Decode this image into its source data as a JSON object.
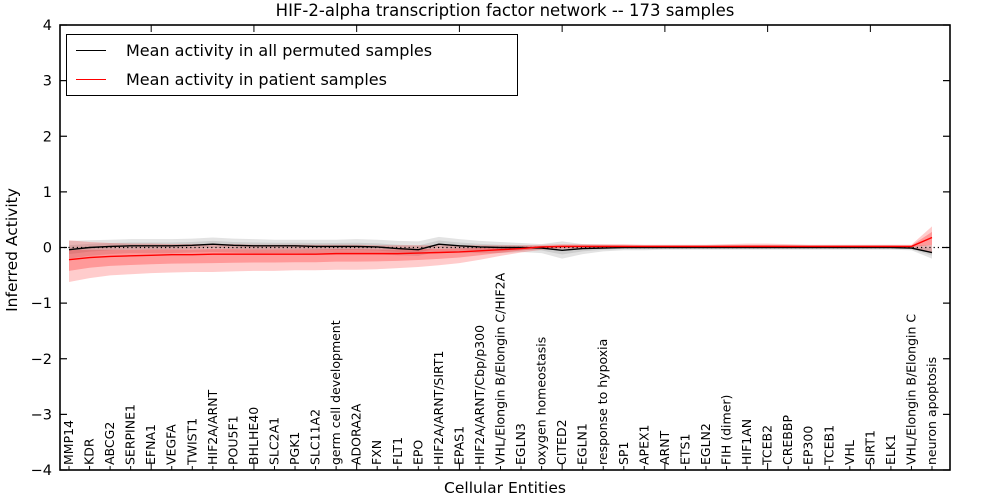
{
  "chart_data": {
    "type": "line",
    "title": "HIF-2-alpha transcription factor network -- 173 samples",
    "xlabel": "Cellular Entities",
    "ylabel": "Inferred Activity",
    "ylim": [
      -4,
      4
    ],
    "yticks": [
      -4,
      -3,
      -2,
      -1,
      0,
      1,
      2,
      3,
      4
    ],
    "grid": false,
    "zero_line_style": "dotted",
    "legend_position": "upper left",
    "categories": [
      "MMP14",
      "KDR",
      "ABCG2",
      "SERPINE1",
      "EFNA1",
      "VEGFA",
      "TWIST1",
      "HIF2A/ARNT",
      "POU5F1",
      "BHLHE40",
      "SLC2A1",
      "PGK1",
      "SLC11A2",
      "germ cell development",
      "ADORA2A",
      "FXN",
      "FLT1",
      "EPO",
      "HIF2A/ARNT/SIRT1",
      "EPAS1",
      "HIF2A/ARNT/Cbp/p300",
      "VHL/Elongin B/Elongin C/HIF2A",
      "EGLN3",
      "oxygen homeostasis",
      "CITED2",
      "EGLN1",
      "response to hypoxia",
      "SP1",
      "APEX1",
      "ARNT",
      "ETS1",
      "EGLN2",
      "FIH (dimer)",
      "HIF1AN",
      "TCEB2",
      "CREBBP",
      "EP300",
      "TCEB1",
      "VHL",
      "SIRT1",
      "ELK1",
      "VHL/Elongin B/Elongin C",
      "neuron apoptosis"
    ],
    "series": [
      {
        "name": "Mean activity in all permuted samples",
        "color": "#000000",
        "band_color": "#808080",
        "values": [
          -0.04,
          0.0,
          0.02,
          0.03,
          0.03,
          0.03,
          0.04,
          0.06,
          0.04,
          0.03,
          0.03,
          0.03,
          0.02,
          0.02,
          0.02,
          0.01,
          -0.02,
          -0.04,
          0.06,
          0.03,
          0.01,
          0.0,
          0.0,
          -0.01,
          -0.05,
          -0.02,
          -0.01,
          0.0,
          0.0,
          0.0,
          0.0,
          0.0,
          0.0,
          0.0,
          0.0,
          0.0,
          0.0,
          0.0,
          0.0,
          0.0,
          0.0,
          -0.01,
          -0.09
        ],
        "band_hi": [
          0.12,
          0.13,
          0.14,
          0.15,
          0.15,
          0.15,
          0.16,
          0.18,
          0.16,
          0.15,
          0.14,
          0.14,
          0.14,
          0.14,
          0.15,
          0.14,
          0.12,
          0.11,
          0.19,
          0.15,
          0.12,
          0.1,
          0.08,
          0.06,
          0.11,
          0.06,
          0.05,
          0.04,
          0.04,
          0.04,
          0.04,
          0.04,
          0.04,
          0.04,
          0.04,
          0.04,
          0.04,
          0.04,
          0.04,
          0.04,
          0.04,
          0.03,
          0.05
        ],
        "band_lo": [
          -0.2,
          -0.15,
          -0.12,
          -0.1,
          -0.1,
          -0.1,
          -0.09,
          -0.08,
          -0.09,
          -0.1,
          -0.1,
          -0.1,
          -0.11,
          -0.11,
          -0.11,
          -0.12,
          -0.14,
          -0.15,
          -0.07,
          -0.09,
          -0.1,
          -0.1,
          -0.08,
          -0.1,
          -0.2,
          -0.12,
          -0.07,
          -0.05,
          -0.05,
          -0.04,
          -0.04,
          -0.04,
          -0.04,
          -0.04,
          -0.04,
          -0.04,
          -0.04,
          -0.04,
          -0.04,
          -0.04,
          -0.04,
          -0.05,
          -0.2
        ]
      },
      {
        "name": "Mean activity in patient samples",
        "color": "#ff0000",
        "band_color": "#ff0000",
        "values": [
          -0.22,
          -0.18,
          -0.16,
          -0.15,
          -0.14,
          -0.13,
          -0.13,
          -0.12,
          -0.12,
          -0.12,
          -0.12,
          -0.12,
          -0.12,
          -0.11,
          -0.11,
          -0.11,
          -0.11,
          -0.1,
          -0.09,
          -0.08,
          -0.06,
          -0.04,
          -0.02,
          0.01,
          0.02,
          0.02,
          0.02,
          0.02,
          0.02,
          0.02,
          0.02,
          0.02,
          0.02,
          0.02,
          0.02,
          0.02,
          0.02,
          0.02,
          0.02,
          0.02,
          0.02,
          0.02,
          0.18
        ],
        "band_hi": [
          0.13,
          0.1,
          0.08,
          0.07,
          0.07,
          0.06,
          0.06,
          0.06,
          0.06,
          0.05,
          0.05,
          0.05,
          0.05,
          0.05,
          0.05,
          0.04,
          0.04,
          0.04,
          0.04,
          0.04,
          0.04,
          0.04,
          0.04,
          0.05,
          0.06,
          0.06,
          0.06,
          0.06,
          0.05,
          0.05,
          0.05,
          0.05,
          0.06,
          0.07,
          0.07,
          0.06,
          0.05,
          0.05,
          0.05,
          0.05,
          0.05,
          0.05,
          0.38
        ],
        "band_lo": [
          -0.62,
          -0.55,
          -0.5,
          -0.48,
          -0.46,
          -0.45,
          -0.44,
          -0.44,
          -0.43,
          -0.42,
          -0.42,
          -0.41,
          -0.41,
          -0.4,
          -0.4,
          -0.39,
          -0.37,
          -0.35,
          -0.32,
          -0.28,
          -0.22,
          -0.15,
          -0.09,
          -0.04,
          -0.02,
          -0.02,
          -0.02,
          -0.01,
          -0.01,
          -0.01,
          -0.01,
          -0.01,
          -0.01,
          -0.01,
          -0.01,
          -0.01,
          -0.01,
          -0.01,
          -0.01,
          -0.01,
          -0.01,
          -0.01,
          -0.08
        ]
      }
    ]
  },
  "legend": {
    "items": [
      {
        "label": "Mean activity in all permuted samples",
        "color": "#000000"
      },
      {
        "label": "Mean activity in patient samples",
        "color": "#ff0000"
      }
    ]
  }
}
